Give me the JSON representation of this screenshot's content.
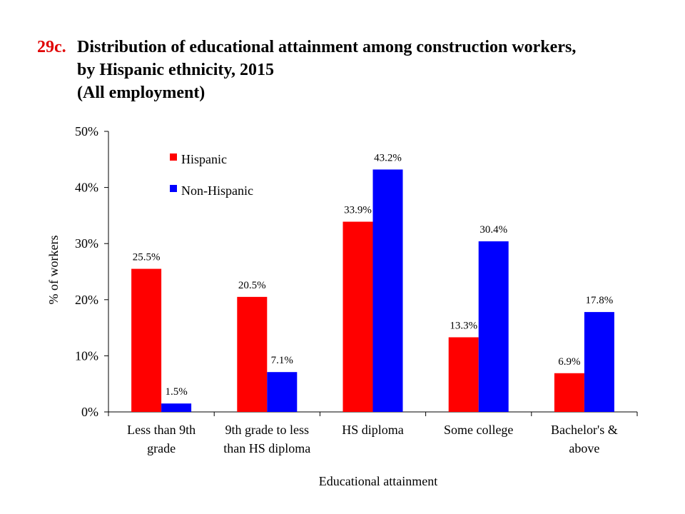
{
  "title": {
    "number": "29c.",
    "lines": [
      "Distribution of educational attainment among construction workers,",
      "by Hispanic ethnicity, 2015",
      "(All employment)"
    ]
  },
  "colors": {
    "hispanic": "#ff0000",
    "non_hispanic": "#0000ff"
  },
  "chart_data": {
    "type": "bar",
    "title": "Distribution of educational attainment among construction workers, by Hispanic ethnicity, 2015 (All employment)",
    "xlabel": "Educational attainment",
    "ylabel": "% of workers",
    "ylim": [
      0,
      50
    ],
    "yticks": [
      "0%",
      "10%",
      "20%",
      "30%",
      "40%",
      "50%"
    ],
    "ytick_values": [
      0,
      10,
      20,
      30,
      40,
      50
    ],
    "grid": false,
    "legend_position": "top-left",
    "categories": [
      [
        "Less than 9th",
        "grade"
      ],
      [
        "9th grade to less",
        "than HS diploma"
      ],
      [
        "HS diploma"
      ],
      [
        "Some college"
      ],
      [
        "Bachelor's &",
        "above"
      ]
    ],
    "series": [
      {
        "name": "Hispanic",
        "color": "#ff0000",
        "values": [
          25.5,
          20.5,
          33.9,
          13.3,
          6.9
        ],
        "labels": [
          "25.5%",
          "20.5%",
          "33.9%",
          "13.3%",
          "6.9%"
        ]
      },
      {
        "name": "Non-Hispanic",
        "color": "#0000ff",
        "values": [
          1.5,
          7.1,
          43.2,
          30.4,
          17.8
        ],
        "labels": [
          "1.5%",
          "7.1%",
          "43.2%",
          "30.4%",
          "17.8%"
        ]
      }
    ]
  }
}
